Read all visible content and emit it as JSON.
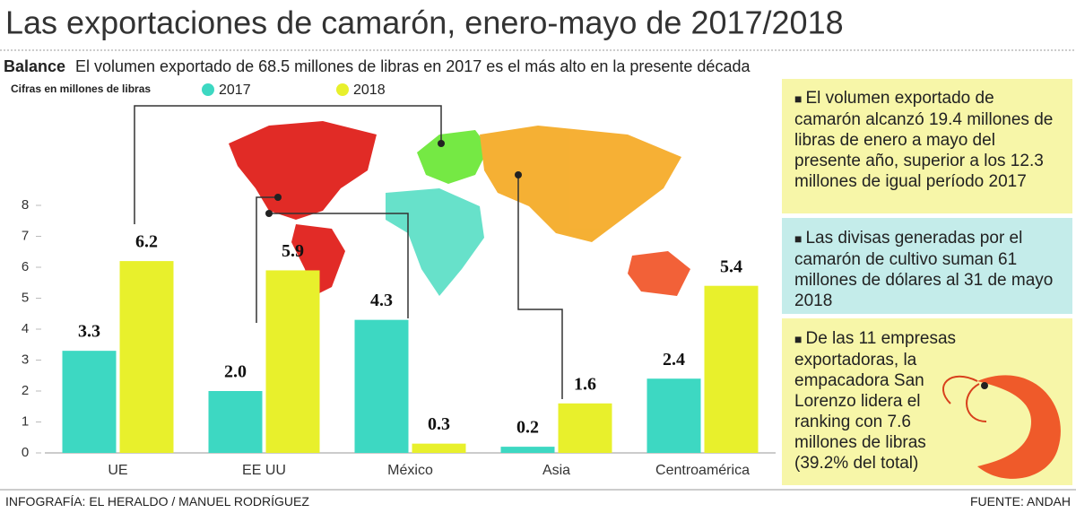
{
  "chart_data": {
    "type": "bar",
    "title": "Las exportaciones de camarón, enero-mayo de 2017/2018",
    "subtitle_label": "Balance",
    "subtitle": "El volumen exportado de 68.5 millones de libras en 2017 es el más alto en la presente década",
    "note": "Cifras en millones de libras",
    "categories": [
      "UE",
      "EE UU",
      "México",
      "Asia",
      "Centroamérica"
    ],
    "series": [
      {
        "name": "2017",
        "color": "#3dd8c2",
        "values": [
          3.3,
          2.0,
          4.3,
          0.2,
          2.4
        ],
        "value_labels": [
          "3.3",
          "2.0",
          "4.3",
          "0.2",
          "2.4"
        ]
      },
      {
        "name": "2018",
        "color": "#e8f02c",
        "values": [
          6.2,
          5.9,
          0.3,
          1.6,
          5.4
        ],
        "value_labels": [
          "6.2",
          "5.9",
          "0.3",
          "1.6",
          "5.4"
        ]
      }
    ],
    "ylim": [
      0,
      8
    ],
    "yticks": [
      0,
      1,
      2,
      3,
      4,
      5,
      6,
      7,
      8
    ],
    "notes": [
      "El volumen exportado de camarón alcanzó 19.4 millones de libras de enero a mayo del presente año, superior a los 12.3 millones de igual período 2017",
      "Las divisas generadas por el camarón de cultivo suman 61 millones de dólares al 31 de mayo 2018",
      "De las 11 empresas exportadoras, la empacadora San Lorenzo lidera el ranking con 7.6 millones de libras (39.2% del total)"
    ],
    "credit": "INFOGRAFÍA: EL HERALDO / MANUEL RODRÍGUEZ",
    "source": "FUENTE: ANDAH"
  }
}
